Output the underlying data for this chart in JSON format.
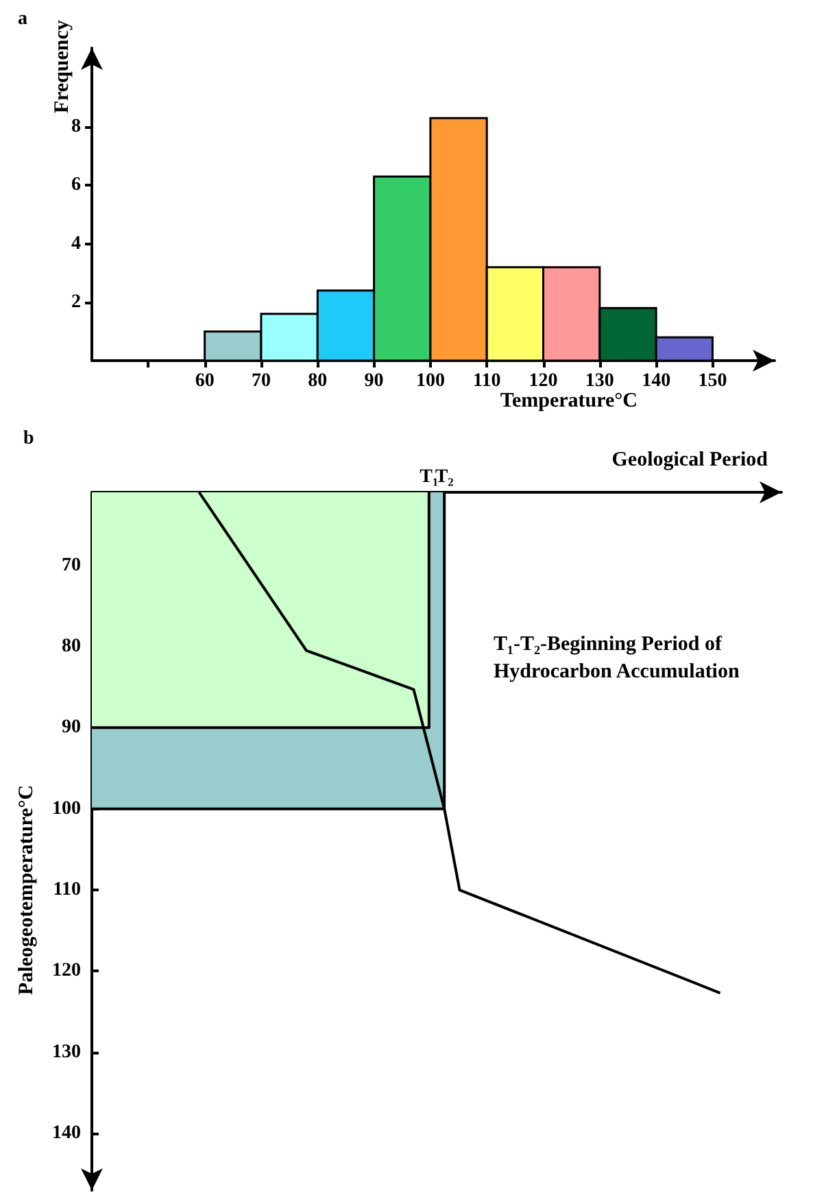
{
  "chart_data": [
    {
      "type": "histogram",
      "title": "a",
      "xlabel": "Temperature°C",
      "ylabel": "Frequency",
      "bins": [
        60,
        70,
        80,
        90,
        100,
        110,
        120,
        130,
        140,
        150
      ],
      "values": [
        1,
        1.6,
        2.4,
        6.3,
        8.3,
        3.2,
        3.2,
        1.8,
        0.8
      ],
      "colors": [
        "#99cccc",
        "#99ffff",
        "#1ecbf8",
        "#33cc66",
        "#ff9933",
        "#ffff66",
        "#ff9999",
        "#006633",
        "#6666cc"
      ],
      "xlim": [
        40,
        161
      ],
      "xticks": [
        {
          "value": 50,
          "label": null
        },
        60,
        70,
        80,
        90,
        100,
        110,
        120,
        130,
        140,
        150
      ],
      "ylim": [
        0,
        10.7
      ],
      "yticks": [
        2,
        4,
        6,
        8
      ]
    },
    {
      "type": "line",
      "title": "b",
      "xlabel": "Geological Period",
      "ylabel": "Paleogeotemperature°C",
      "annotations": [
        "T₁-T₂-Beginning Period of Hydrocarbon Accumulation"
      ],
      "categories": [
        null,
        null,
        null,
        null,
        null,
        null,
        null,
        null,
        null,
        null,
        null,
        null,
        null,
        null,
        null,
        null,
        null,
        null,
        null,
        null,
        null,
        null,
        "T₁",
        "T₂",
        null,
        null,
        null,
        null,
        null,
        null,
        null,
        null,
        null,
        null,
        null,
        null,
        null,
        null,
        null,
        null,
        null,
        null,
        null,
        null,
        null,
        null
      ],
      "series": [
        {
          "type": "area",
          "color": "#99cccc",
          "values": [
            100,
            100,
            100,
            100,
            100,
            100,
            100,
            100,
            100,
            100,
            100,
            100,
            100,
            100,
            100,
            100,
            100,
            100,
            100,
            100,
            100,
            100,
            100,
            100,
            null,
            null,
            null,
            null,
            null,
            null,
            null,
            null,
            null,
            null,
            null,
            null,
            null,
            null,
            null,
            null,
            null,
            null,
            null,
            null,
            null,
            null
          ]
        },
        {
          "type": "area",
          "color": "#ccffcc",
          "values": [
            90,
            90,
            90,
            90,
            90,
            90,
            90,
            90,
            90,
            90,
            90,
            90,
            90,
            90,
            90,
            90,
            90,
            90,
            90,
            90,
            90,
            90,
            90,
            null,
            null,
            null,
            null,
            null,
            null,
            null,
            null,
            null,
            null,
            null,
            null,
            null,
            null,
            null,
            null,
            null,
            null,
            null,
            null,
            null,
            null,
            null
          ]
        },
        {
          "type": "line",
          "color": "#000000",
          "values": [
            null,
            null,
            null,
            null,
            null,
            null,
            null,
            61,
            null,
            null,
            null,
            null,
            null,
            null,
            80.5,
            null,
            null,
            null,
            null,
            null,
            null,
            85.3,
            null,
            100,
            110,
            null,
            null,
            null,
            null,
            null,
            null,
            null,
            null,
            null,
            null,
            null,
            null,
            null,
            null,
            null,
            null,
            122.7,
            null,
            null,
            null,
            null
          ]
        }
      ],
      "ylim": [
        147,
        61
      ],
      "yticks": [
        70,
        80,
        90,
        100,
        110,
        120,
        130,
        140
      ],
      "marker": "none"
    }
  ]
}
